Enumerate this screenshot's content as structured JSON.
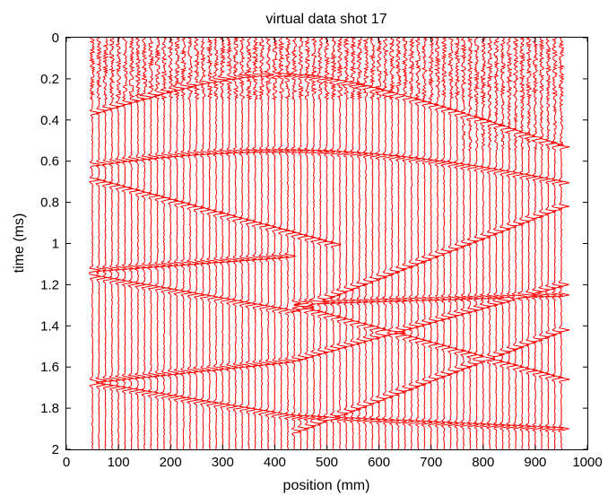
{
  "chart_data": {
    "type": "wiggle",
    "title": "virtual data shot 17",
    "xlabel": "position (mm)",
    "ylabel": "time (ms)",
    "xlim": [
      0,
      1000
    ],
    "ylim": [
      0,
      2
    ],
    "y_reversed": true,
    "xticks": [
      "0",
      "100",
      "200",
      "300",
      "400",
      "500",
      "600",
      "700",
      "800",
      "900",
      "1000"
    ],
    "yticks": [
      "0",
      "0.2",
      "0.4",
      "0.6",
      "0.8",
      "1",
      "1.2",
      "1.4",
      "1.6",
      "1.8",
      "2"
    ],
    "trace_color": "#ff0000",
    "trace_positions": [
      50,
      950
    ],
    "trace_spacing": 12.5,
    "events": [
      {
        "type": "hyperbola",
        "apex_x": 400,
        "t0": 0.18,
        "velocity": 2.2
      },
      {
        "type": "hyperbola",
        "apex_x": 400,
        "t0": 0.55,
        "velocity": 2.5
      },
      {
        "type": "line",
        "points": [
          [
            50,
            0.69
          ],
          [
            520,
            1.01
          ]
        ]
      },
      {
        "type": "line",
        "points": [
          [
            50,
            1.13
          ],
          [
            430,
            1.06
          ]
        ]
      },
      {
        "type": "line",
        "points": [
          [
            50,
            1.16
          ],
          [
            430,
            1.33
          ]
        ]
      },
      {
        "type": "line",
        "points": [
          [
            430,
            1.33
          ],
          [
            950,
            0.82
          ]
        ]
      },
      {
        "type": "line",
        "points": [
          [
            430,
            1.29
          ],
          [
            950,
            1.25
          ]
        ]
      },
      {
        "type": "line",
        "points": [
          [
            430,
            1.57
          ],
          [
            950,
            1.2
          ]
        ]
      },
      {
        "type": "line",
        "points": [
          [
            430,
            1.3
          ],
          [
            950,
            1.66
          ]
        ]
      },
      {
        "type": "line",
        "points": [
          [
            50,
            1.67
          ],
          [
            430,
            1.57
          ]
        ]
      },
      {
        "type": "line",
        "points": [
          [
            50,
            1.68
          ],
          [
            430,
            1.84
          ]
        ]
      },
      {
        "type": "line",
        "points": [
          [
            430,
            1.92
          ],
          [
            950,
            1.42
          ]
        ]
      },
      {
        "type": "line",
        "points": [
          [
            430,
            1.84
          ],
          [
            950,
            1.9
          ]
        ]
      }
    ]
  }
}
